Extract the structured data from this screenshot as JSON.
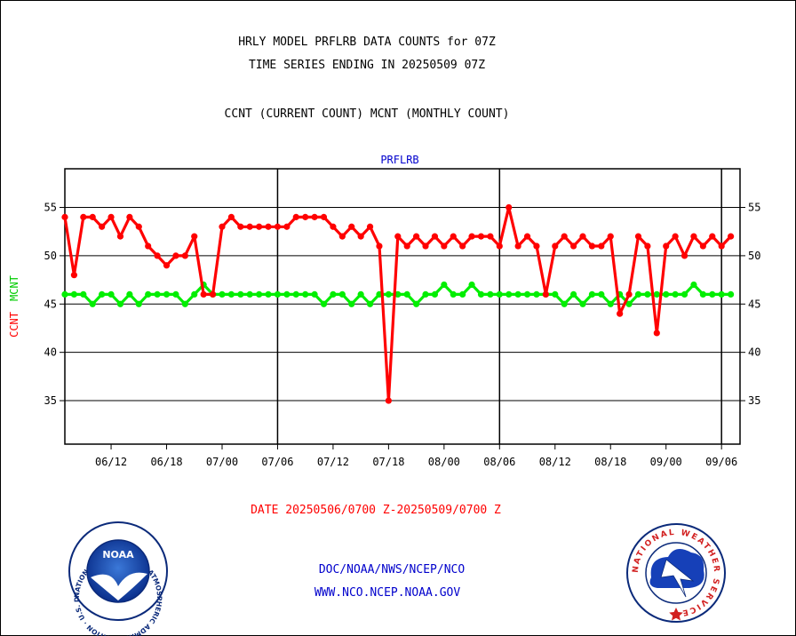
{
  "chart_data": {
    "type": "line",
    "title_line1": "HRLY MODEL PRFLRB DATA COUNTS for 07Z",
    "title_line2": "TIME SERIES ENDING IN 20250509 07Z",
    "subtitle": "CCNT (CURRENT COUNT) MCNT (MONTHLY COUNT)",
    "panel_label": "PRFLRB",
    "ylabel_ccnt": "CCNT",
    "ylabel_mcnt": "MCNT",
    "xlabel": "DATE 20250506/0700 Z-20250509/0700 Z",
    "ylim": [
      30.5,
      59
    ],
    "yticks": [
      35,
      40,
      45,
      50,
      55
    ],
    "x_range": [
      0,
      73
    ],
    "xticks": [
      {
        "x": 5,
        "label": "06/12"
      },
      {
        "x": 11,
        "label": "06/18"
      },
      {
        "x": 17,
        "label": "07/00"
      },
      {
        "x": 23,
        "label": "07/06"
      },
      {
        "x": 29,
        "label": "07/12"
      },
      {
        "x": 35,
        "label": "07/18"
      },
      {
        "x": 41,
        "label": "08/00"
      },
      {
        "x": 47,
        "label": "08/06"
      },
      {
        "x": 53,
        "label": "08/12"
      },
      {
        "x": 59,
        "label": "08/18"
      },
      {
        "x": 65,
        "label": "09/00"
      },
      {
        "x": 71,
        "label": "09/06"
      }
    ],
    "day_boundaries": [
      23,
      47,
      71
    ],
    "grid": true,
    "series": [
      {
        "name": "CCNT",
        "color": "#ff0000",
        "values": [
          54,
          48,
          54,
          54,
          53,
          54,
          52,
          54,
          53,
          51,
          50,
          49,
          50,
          50,
          52,
          46,
          46,
          53,
          54,
          53,
          53,
          53,
          53,
          53,
          53,
          54,
          54,
          54,
          54,
          53,
          52,
          53,
          52,
          53,
          51,
          35,
          52,
          51,
          52,
          51,
          52,
          51,
          52,
          51,
          52,
          52,
          52,
          51,
          55,
          51,
          52,
          51,
          46,
          51,
          52,
          51,
          52,
          51,
          51,
          52,
          44,
          46,
          52,
          51,
          42,
          51,
          52,
          50,
          52,
          51,
          52,
          51,
          52
        ]
      },
      {
        "name": "MCNT",
        "color": "#00ee00",
        "values": [
          46,
          46,
          46,
          45,
          46,
          46,
          45,
          46,
          45,
          46,
          46,
          46,
          46,
          45,
          46,
          47,
          46,
          46,
          46,
          46,
          46,
          46,
          46,
          46,
          46,
          46,
          46,
          46,
          45,
          46,
          46,
          45,
          46,
          45,
          46,
          46,
          46,
          46,
          45,
          46,
          46,
          47,
          46,
          46,
          47,
          46,
          46,
          46,
          46,
          46,
          46,
          46,
          46,
          46,
          45,
          46,
          45,
          46,
          46,
          45,
          46,
          45,
          46,
          46,
          46,
          46,
          46,
          46,
          47,
          46,
          46,
          46,
          46
        ]
      }
    ]
  },
  "footer": {
    "line1": "DOC/NOAA/NWS/NCEP/NCO",
    "line2": "WWW.NCO.NCEP.NOAA.GOV"
  },
  "logos": {
    "noaa_name": "NOAA",
    "noaa_ring": "NATIONAL OCEANIC AND ATMOSPHERIC ADMINISTRATION · U.S. DEPARTMENT OF COMMERCE ·",
    "nws_ring": "NATIONAL WEATHER SERVICE"
  },
  "colors": {
    "title": "#000000",
    "blue_text": "#0000cc",
    "red_text": "#ff0000",
    "green_text": "#00cc00"
  }
}
